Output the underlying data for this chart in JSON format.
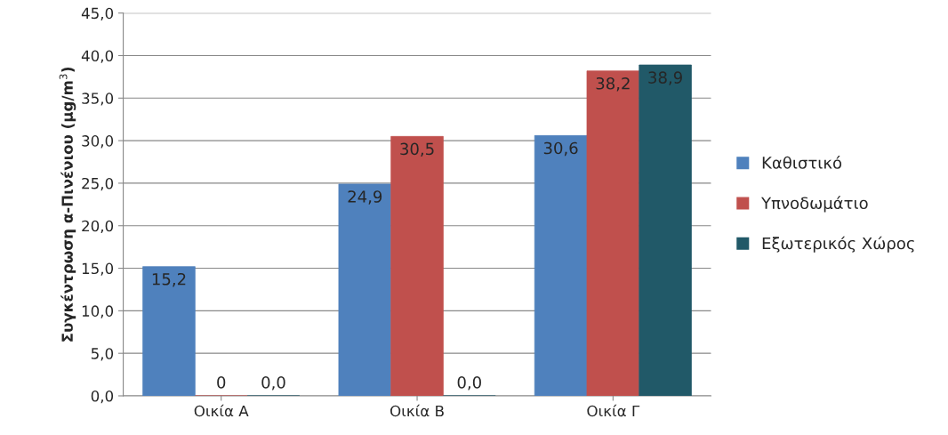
{
  "chart_data": {
    "type": "bar",
    "ylabel": "Συγκέντρωση α-Πινένιου (μg/m$^{3}$)",
    "categories": [
      "Οικία Α",
      "Οικία Β",
      "Οικία Γ"
    ],
    "series": [
      {
        "name": "Καθιστικό",
        "color": "#4f81bd",
        "values": [
          15.2,
          24.9,
          30.6
        ],
        "value_labels": [
          "15,2",
          "24,9",
          "30,6"
        ]
      },
      {
        "name": "Υπνοδωμάτιο",
        "color": "#c0504d",
        "values": [
          0,
          30.5,
          38.2
        ],
        "value_labels": [
          "0",
          "30,5",
          "38,2"
        ]
      },
      {
        "name": "Εξωτερικός Χώρος",
        "color": "#215968",
        "values": [
          0.0,
          0.0,
          38.9
        ],
        "value_labels": [
          "0,0",
          "0,0",
          "38,9"
        ]
      }
    ],
    "ylim": [
      0,
      45
    ],
    "yticks": [
      {
        "value": 0,
        "label": "0,0"
      },
      {
        "value": 5,
        "label": "5,0"
      },
      {
        "value": 10,
        "label": "10,0"
      },
      {
        "value": 15,
        "label": "15,0"
      },
      {
        "value": 20,
        "label": "20,0"
      },
      {
        "value": 25,
        "label": "25,0"
      },
      {
        "value": 30,
        "label": "30,0"
      },
      {
        "value": 35,
        "label": "35,0"
      },
      {
        "value": 40,
        "label": "40,0"
      },
      {
        "value": 45,
        "label": "45,0"
      }
    ],
    "grid": "y",
    "legend": "right"
  }
}
